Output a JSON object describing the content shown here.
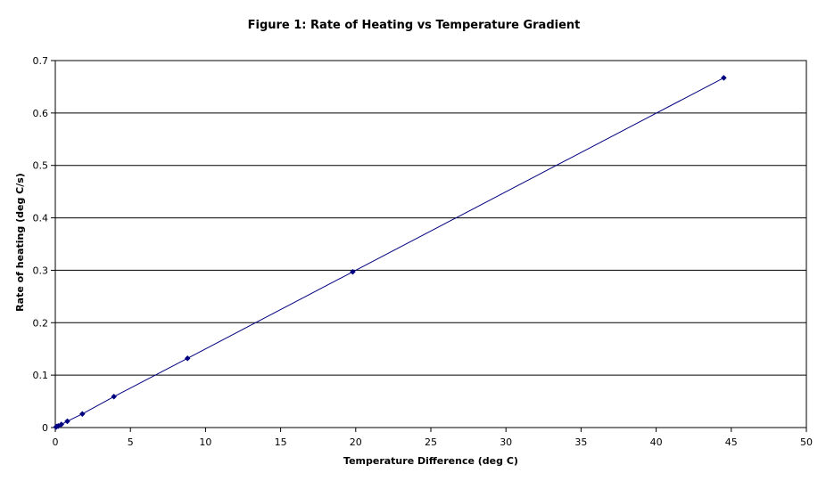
{
  "chart_data": {
    "type": "line",
    "title": "Figure 1: Rate of Heating vs Temperature Gradient",
    "xlabel": "Temperature Difference (deg C)",
    "ylabel": "Rate of heating (deg C/s)",
    "xlim": [
      0,
      50
    ],
    "ylim": [
      0,
      0.7
    ],
    "xticks": [
      "0",
      "5",
      "10",
      "15",
      "20",
      "25",
      "30",
      "35",
      "40",
      "45",
      "50"
    ],
    "yticks": [
      "0",
      "0.1",
      "0.2",
      "0.3",
      "0.4",
      "0.5",
      "0.6",
      "0.7"
    ],
    "grid": "horizontal",
    "legend": "none",
    "series": [
      {
        "color": "#000080",
        "marker": "diamond",
        "x": [
          0.05,
          0.1,
          0.2,
          0.4,
          0.8,
          1.8,
          3.9,
          8.8,
          19.8,
          44.5
        ],
        "y": [
          0.001,
          0.002,
          0.003,
          0.006,
          0.012,
          0.026,
          0.059,
          0.132,
          0.297,
          0.667
        ]
      }
    ]
  }
}
